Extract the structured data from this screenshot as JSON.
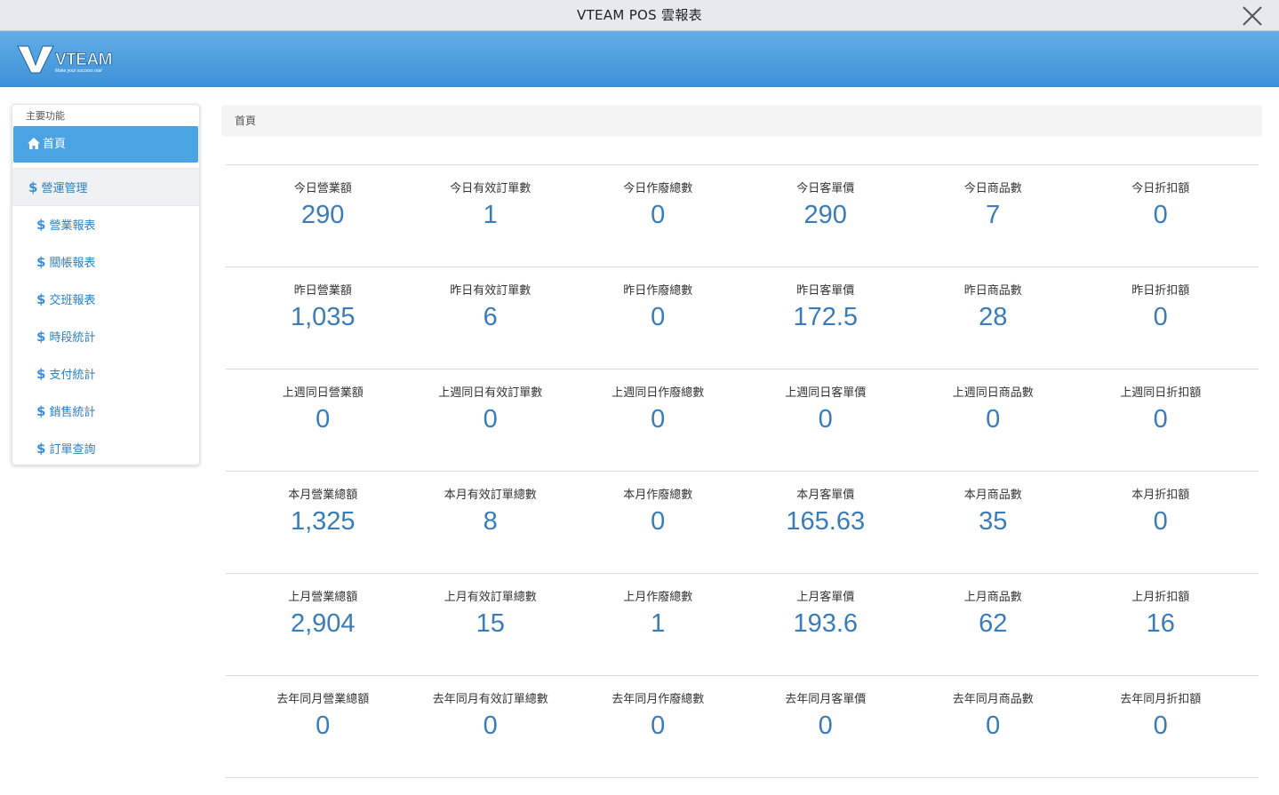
{
  "window": {
    "title": "VTEAM POS 雲報表"
  },
  "header": {
    "logo_text": "VTEAM",
    "logo_tagline": "Make your success real"
  },
  "sidebar": {
    "heading": "主要功能",
    "home": "首頁",
    "group": "營運管理",
    "items": [
      {
        "label": "營業報表"
      },
      {
        "label": "關帳報表"
      },
      {
        "label": "交班報表"
      },
      {
        "label": "時段統計"
      },
      {
        "label": "支付統計"
      },
      {
        "label": "銷售統計"
      },
      {
        "label": "訂單查詢"
      }
    ]
  },
  "breadcrumb": {
    "current": "首頁"
  },
  "stats": [
    [
      {
        "label": "今日營業額",
        "value": "290"
      },
      {
        "label": "今日有效訂單數",
        "value": "1"
      },
      {
        "label": "今日作廢總數",
        "value": "0"
      },
      {
        "label": "今日客單價",
        "value": "290"
      },
      {
        "label": "今日商品數",
        "value": "7"
      },
      {
        "label": "今日折扣額",
        "value": "0"
      }
    ],
    [
      {
        "label": "昨日營業額",
        "value": "1,035"
      },
      {
        "label": "昨日有效訂單數",
        "value": "6"
      },
      {
        "label": "昨日作廢總數",
        "value": "0"
      },
      {
        "label": "昨日客單價",
        "value": "172.5"
      },
      {
        "label": "昨日商品數",
        "value": "28"
      },
      {
        "label": "昨日折扣額",
        "value": "0"
      }
    ],
    [
      {
        "label": "上週同日營業額",
        "value": "0"
      },
      {
        "label": "上週同日有效訂單數",
        "value": "0"
      },
      {
        "label": "上週同日作廢總數",
        "value": "0"
      },
      {
        "label": "上週同日客單價",
        "value": "0"
      },
      {
        "label": "上週同日商品數",
        "value": "0"
      },
      {
        "label": "上週同日折扣額",
        "value": "0"
      }
    ],
    [
      {
        "label": "本月營業總額",
        "value": "1,325"
      },
      {
        "label": "本月有效訂單總數",
        "value": "8"
      },
      {
        "label": "本月作廢總數",
        "value": "0"
      },
      {
        "label": "本月客單價",
        "value": "165.63"
      },
      {
        "label": "本月商品數",
        "value": "35"
      },
      {
        "label": "本月折扣額",
        "value": "0"
      }
    ],
    [
      {
        "label": "上月營業總額",
        "value": "2,904"
      },
      {
        "label": "上月有效訂單總數",
        "value": "15"
      },
      {
        "label": "上月作廢總數",
        "value": "1"
      },
      {
        "label": "上月客單價",
        "value": "193.6"
      },
      {
        "label": "上月商品數",
        "value": "62"
      },
      {
        "label": "上月折扣額",
        "value": "16"
      }
    ],
    [
      {
        "label": "去年同月營業總額",
        "value": "0"
      },
      {
        "label": "去年同月有效訂單總數",
        "value": "0"
      },
      {
        "label": "去年同月作廢總數",
        "value": "0"
      },
      {
        "label": "去年同月客單價",
        "value": "0"
      },
      {
        "label": "去年同月商品數",
        "value": "0"
      },
      {
        "label": "去年同月折扣額",
        "value": "0"
      }
    ]
  ],
  "colors": {
    "accent": "#4aa3e3",
    "header": "#3d92d8",
    "value": "#3a7cb8",
    "link": "#2c7fbf"
  }
}
